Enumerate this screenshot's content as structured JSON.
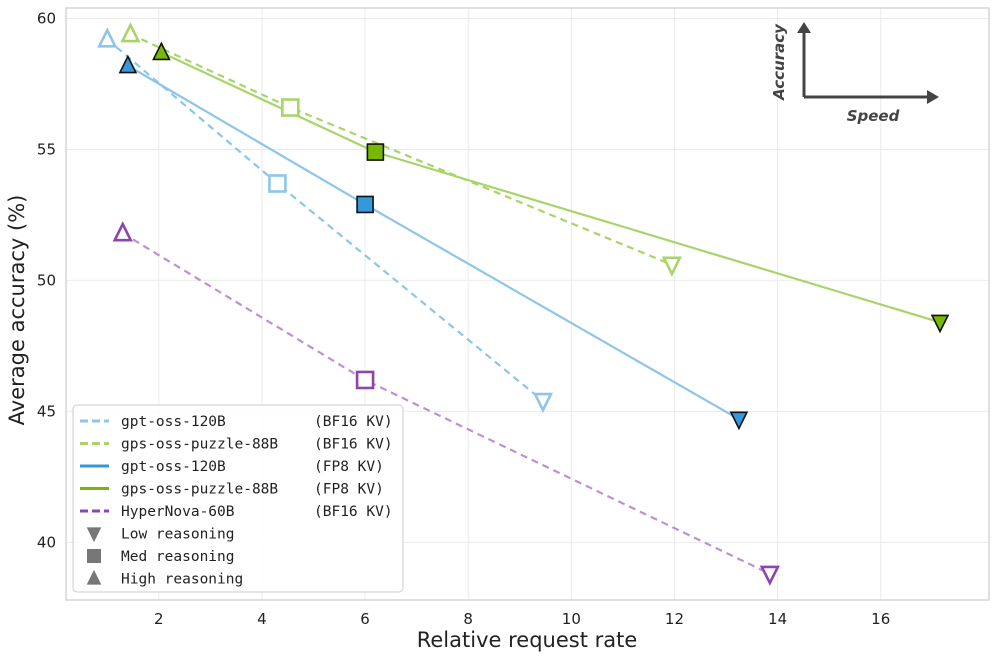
{
  "chart_data": {
    "type": "line",
    "xlabel": "Relative request rate",
    "ylabel": "Average accuracy (%)",
    "xlim": [
      0.2,
      18.1
    ],
    "ylim": [
      37.8,
      60.4
    ],
    "xticks": [
      2,
      4,
      6,
      8,
      10,
      12,
      14,
      16
    ],
    "yticks": [
      40,
      45,
      50,
      55,
      60
    ],
    "grid": true,
    "series": [
      {
        "name": "gpt-oss-120B",
        "precision": "(BF16 KV)",
        "color": "#8ec5ea",
        "dashed": true,
        "filled": false,
        "points": [
          {
            "x": 1.0,
            "y": 59.2,
            "level": "high"
          },
          {
            "x": 4.3,
            "y": 53.7,
            "level": "med"
          },
          {
            "x": 9.45,
            "y": 45.4,
            "level": "low"
          }
        ]
      },
      {
        "name": "gps-oss-puzzle-88B",
        "precision": "(BF16 KV)",
        "color": "#a8d46a",
        "dashed": true,
        "filled": false,
        "points": [
          {
            "x": 1.45,
            "y": 59.4,
            "level": "high"
          },
          {
            "x": 4.55,
            "y": 56.6,
            "level": "med"
          },
          {
            "x": 11.95,
            "y": 50.6,
            "level": "low"
          }
        ]
      },
      {
        "name": "gpt-oss-120B",
        "precision": "(FP8 KV)",
        "color": "#3498db",
        "line_color": "#8ec5ea",
        "dashed": false,
        "filled": true,
        "points": [
          {
            "x": 1.4,
            "y": 58.2,
            "level": "high"
          },
          {
            "x": 6.0,
            "y": 52.9,
            "level": "med"
          },
          {
            "x": 13.25,
            "y": 44.7,
            "level": "low"
          }
        ]
      },
      {
        "name": "gps-oss-puzzle-88B",
        "precision": "(FP8 KV)",
        "color": "#76b900",
        "line_color": "#a8d46a",
        "dashed": false,
        "filled": true,
        "points": [
          {
            "x": 2.05,
            "y": 58.7,
            "level": "high"
          },
          {
            "x": 6.2,
            "y": 54.9,
            "level": "med"
          },
          {
            "x": 17.15,
            "y": 48.4,
            "level": "low"
          }
        ]
      },
      {
        "name": "HyperNova-60B",
        "precision": "(BF16 KV)",
        "color": "#8e44ad",
        "line_color": "#bf8fd6",
        "dashed": true,
        "filled": false,
        "points": [
          {
            "x": 1.3,
            "y": 51.8,
            "level": "high"
          },
          {
            "x": 6.0,
            "y": 46.2,
            "level": "med"
          },
          {
            "x": 13.85,
            "y": 38.8,
            "level": "low"
          }
        ]
      }
    ],
    "marker_legend": [
      {
        "label": "Low reasoning",
        "marker": "triangle-down"
      },
      {
        "label": "Med reasoning",
        "marker": "square"
      },
      {
        "label": "High reasoning",
        "marker": "triangle-up"
      }
    ],
    "inset": {
      "y_label": "Accuracy",
      "x_label": "Speed"
    },
    "legend_position": "lower-left"
  }
}
